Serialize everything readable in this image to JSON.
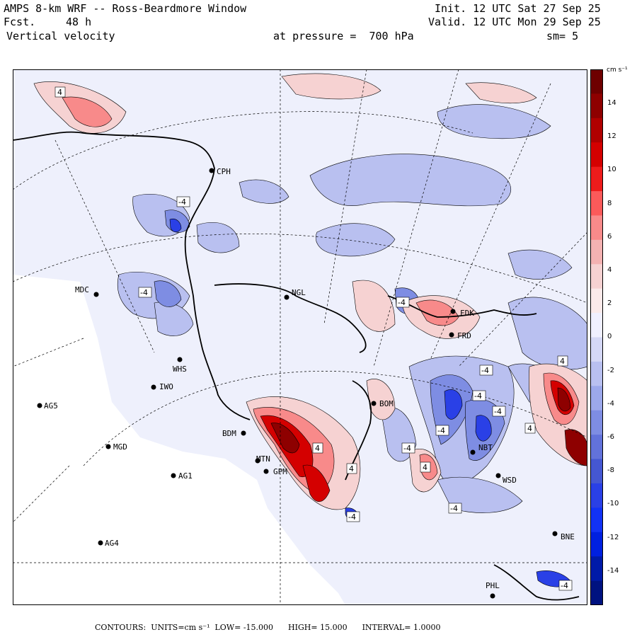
{
  "header": {
    "title": "AMPS 8-km WRF -- Ross-Beardmore Window",
    "fcst_label": "Fcst.",
    "fcst_value": "48 h",
    "variable": "Vertical velocity",
    "init": "Init. 12 UTC Sat 27 Sep 25",
    "valid": "Valid. 12 UTC Mon 29 Sep 25",
    "pressure": "at pressure =  700 hPa",
    "smoothing": "sm= 5"
  },
  "colorbar": {
    "unit": "cm s⁻¹",
    "labels": [
      "14",
      "12",
      "10",
      "8",
      "6",
      "4",
      "2",
      "0",
      "-2",
      "-4",
      "-6",
      "-8",
      "-10",
      "-12",
      "-14"
    ],
    "colors": [
      "#6e0000",
      "#8e0000",
      "#b00000",
      "#d40000",
      "#ee1c1c",
      "#fb5a5a",
      "#f88a8a",
      "#f4b2b2",
      "#f6d2d2",
      "#fbeaea",
      "#f0f0ff",
      "#d5d8f6",
      "#b9c0f0",
      "#9ca8eb",
      "#7e8de3",
      "#6272da",
      "#4557d2",
      "#2a40e6",
      "#1232f5",
      "#0020e0",
      "#001aa8",
      "#001280"
    ]
  },
  "stations": [
    {
      "id": "CPH",
      "label": "CPH"
    },
    {
      "id": "MDC",
      "label": "MDC"
    },
    {
      "id": "NGL",
      "label": "NGL"
    },
    {
      "id": "FDK",
      "label": "FDK"
    },
    {
      "id": "FRD",
      "label": "FRD"
    },
    {
      "id": "WHS",
      "label": "WHS"
    },
    {
      "id": "IWO",
      "label": "IWO"
    },
    {
      "id": "AG5",
      "label": "AG5"
    },
    {
      "id": "BOM",
      "label": "BOM"
    },
    {
      "id": "BDM",
      "label": "BDM"
    },
    {
      "id": "MGD",
      "label": "MGD"
    },
    {
      "id": "MTN",
      "label": "MTN"
    },
    {
      "id": "GPM",
      "label": "GPM"
    },
    {
      "id": "AG1",
      "label": "AG1"
    },
    {
      "id": "NBT",
      "label": "NBT"
    },
    {
      "id": "WSD",
      "label": "WSD"
    },
    {
      "id": "AG4",
      "label": "AG4"
    },
    {
      "id": "BNE",
      "label": "BNE"
    },
    {
      "id": "PHL",
      "label": "PHL"
    }
  ],
  "contour_labels": [
    "4",
    "-4",
    "-4",
    "-4",
    "4",
    "4",
    "-4",
    "-4",
    "-4",
    "-4",
    "4",
    "-4",
    "4",
    "-4",
    "4",
    "-4",
    "-4"
  ],
  "footer": {
    "contours": "CONTOURS:",
    "units": "UNITS=cm s⁻¹",
    "low": "LOW= -15.000",
    "high": "HIGH= 15.000",
    "interval": "INTERVAL= 1.0000"
  }
}
